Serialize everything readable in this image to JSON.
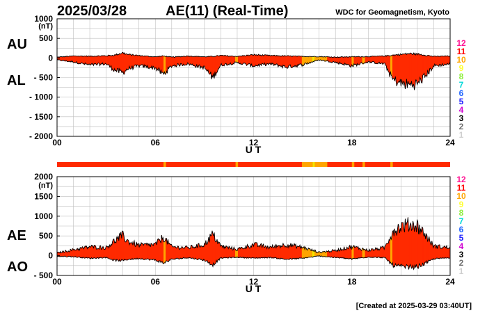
{
  "header": {
    "date": "2025/03/28",
    "title": "AE(11) (Real-Time)",
    "source": "WDC for Geomagnetism, Kyoto"
  },
  "footer": {
    "created": "[Created at 2025-03-29 03:40UT]"
  },
  "colors": {
    "fill_main": "#ff2a00",
    "fill_10": "#ffa500",
    "fill_9": "#f2e600",
    "line": "#000000",
    "grid": "#bdbdbd"
  },
  "station_scale": {
    "levels": [
      "12",
      "11",
      "10",
      "9",
      "8",
      "7",
      "6",
      "5",
      "4",
      "3",
      "2",
      "1"
    ],
    "colors": [
      "#ff1493",
      "#ff0000",
      "#ffa500",
      "#ffff33",
      "#90ee40",
      "#00d8d8",
      "#1e64ff",
      "#2020ff",
      "#d000d0",
      "#000000",
      "#707070",
      "#cfcfcf"
    ]
  },
  "coverage_bar": [
    {
      "start": 0,
      "end": 24,
      "level": 11
    },
    {
      "start": 6.5,
      "end": 6.65,
      "level": 10
    },
    {
      "start": 10.9,
      "end": 11.05,
      "level": 10
    },
    {
      "start": 14.95,
      "end": 15.6,
      "level": 10
    },
    {
      "start": 15.6,
      "end": 15.75,
      "level": 9
    },
    {
      "start": 15.75,
      "end": 16.5,
      "level": 10
    },
    {
      "start": 18.0,
      "end": 18.15,
      "level": 10
    },
    {
      "start": 18.65,
      "end": 18.8,
      "level": 10
    },
    {
      "start": 20.35,
      "end": 20.5,
      "level": 10
    }
  ],
  "chart_data": [
    {
      "type": "area",
      "name": "AU/AL",
      "labels": {
        "upper": "AU",
        "lower": "AL"
      },
      "unit": "(nT)",
      "xlabel": "U T",
      "xlim": [
        0,
        24
      ],
      "xticks": [
        "00",
        "06",
        "12",
        "18",
        "24"
      ],
      "ylim": [
        -2000,
        1000
      ],
      "yticks": [
        "1000",
        "500",
        "0",
        "- 500",
        "- 1000",
        "- 1500",
        "- 2000"
      ],
      "series": [
        {
          "name": "AU",
          "x": [
            0,
            1,
            2,
            3,
            3.5,
            4,
            4.3,
            5,
            6,
            6.5,
            7,
            8,
            9,
            9.5,
            10,
            11,
            12,
            13,
            14,
            15,
            16,
            17,
            18,
            19,
            20,
            20.5,
            21,
            21.5,
            22,
            22.5,
            23,
            24
          ],
          "values": [
            20,
            50,
            45,
            55,
            70,
            130,
            90,
            60,
            30,
            50,
            20,
            50,
            30,
            40,
            60,
            40,
            80,
            60,
            50,
            40,
            35,
            20,
            30,
            35,
            50,
            70,
            90,
            110,
            100,
            70,
            40,
            50
          ]
        },
        {
          "name": "AL",
          "x": [
            0,
            1,
            2,
            3,
            3.5,
            4,
            4.3,
            5,
            6,
            6.5,
            7,
            8,
            9,
            9.5,
            10,
            11,
            12,
            13,
            14,
            15,
            16,
            17,
            18,
            19,
            20,
            20.5,
            21,
            21.5,
            22,
            22.5,
            23,
            24
          ],
          "values": [
            -50,
            -100,
            -180,
            -150,
            -300,
            -380,
            -280,
            -200,
            -250,
            -420,
            -200,
            -150,
            -250,
            -500,
            -180,
            -120,
            -200,
            -150,
            -230,
            -170,
            -50,
            -110,
            -200,
            -100,
            -150,
            -550,
            -650,
            -680,
            -660,
            -450,
            -200,
            -150
          ]
        }
      ]
    },
    {
      "type": "area",
      "name": "AE/AO",
      "labels": {
        "upper": "AE",
        "lower": "AO"
      },
      "unit": "(nT)",
      "xlabel": "U T",
      "xlim": [
        0,
        24
      ],
      "xticks": [
        "00",
        "06",
        "12",
        "18",
        "24"
      ],
      "ylim": [
        -500,
        2000
      ],
      "yticks": [
        "2000",
        "1500",
        "1000",
        "500",
        "0",
        "- 500"
      ],
      "series": [
        {
          "name": "AE",
          "x": [
            0,
            1,
            2,
            3,
            3.5,
            4,
            4.3,
            5,
            6,
            6.5,
            7,
            8,
            9,
            9.5,
            10,
            11,
            12,
            13,
            14,
            15,
            16,
            17,
            18,
            19,
            20,
            20.5,
            21,
            21.5,
            22,
            22.5,
            23,
            24
          ],
          "values": [
            70,
            150,
            225,
            205,
            370,
            510,
            370,
            260,
            280,
            470,
            220,
            200,
            280,
            540,
            240,
            160,
            280,
            210,
            280,
            210,
            85,
            130,
            230,
            135,
            200,
            620,
            740,
            790,
            760,
            520,
            240,
            200
          ]
        },
        {
          "name": "AO",
          "x": [
            0,
            1,
            2,
            3,
            3.5,
            4,
            4.3,
            5,
            6,
            6.5,
            7,
            8,
            9,
            9.5,
            10,
            11,
            12,
            13,
            14,
            15,
            16,
            17,
            18,
            19,
            20,
            20.5,
            21,
            21.5,
            22,
            22.5,
            23,
            24
          ],
          "values": [
            -15,
            -25,
            -65,
            -45,
            -115,
            -125,
            -95,
            -70,
            -110,
            -185,
            -90,
            -50,
            -110,
            -230,
            -60,
            -40,
            -60,
            -45,
            -90,
            -65,
            -8,
            -45,
            -85,
            -33,
            -50,
            -240,
            -280,
            -285,
            -280,
            -190,
            -80,
            -50
          ]
        }
      ]
    }
  ]
}
